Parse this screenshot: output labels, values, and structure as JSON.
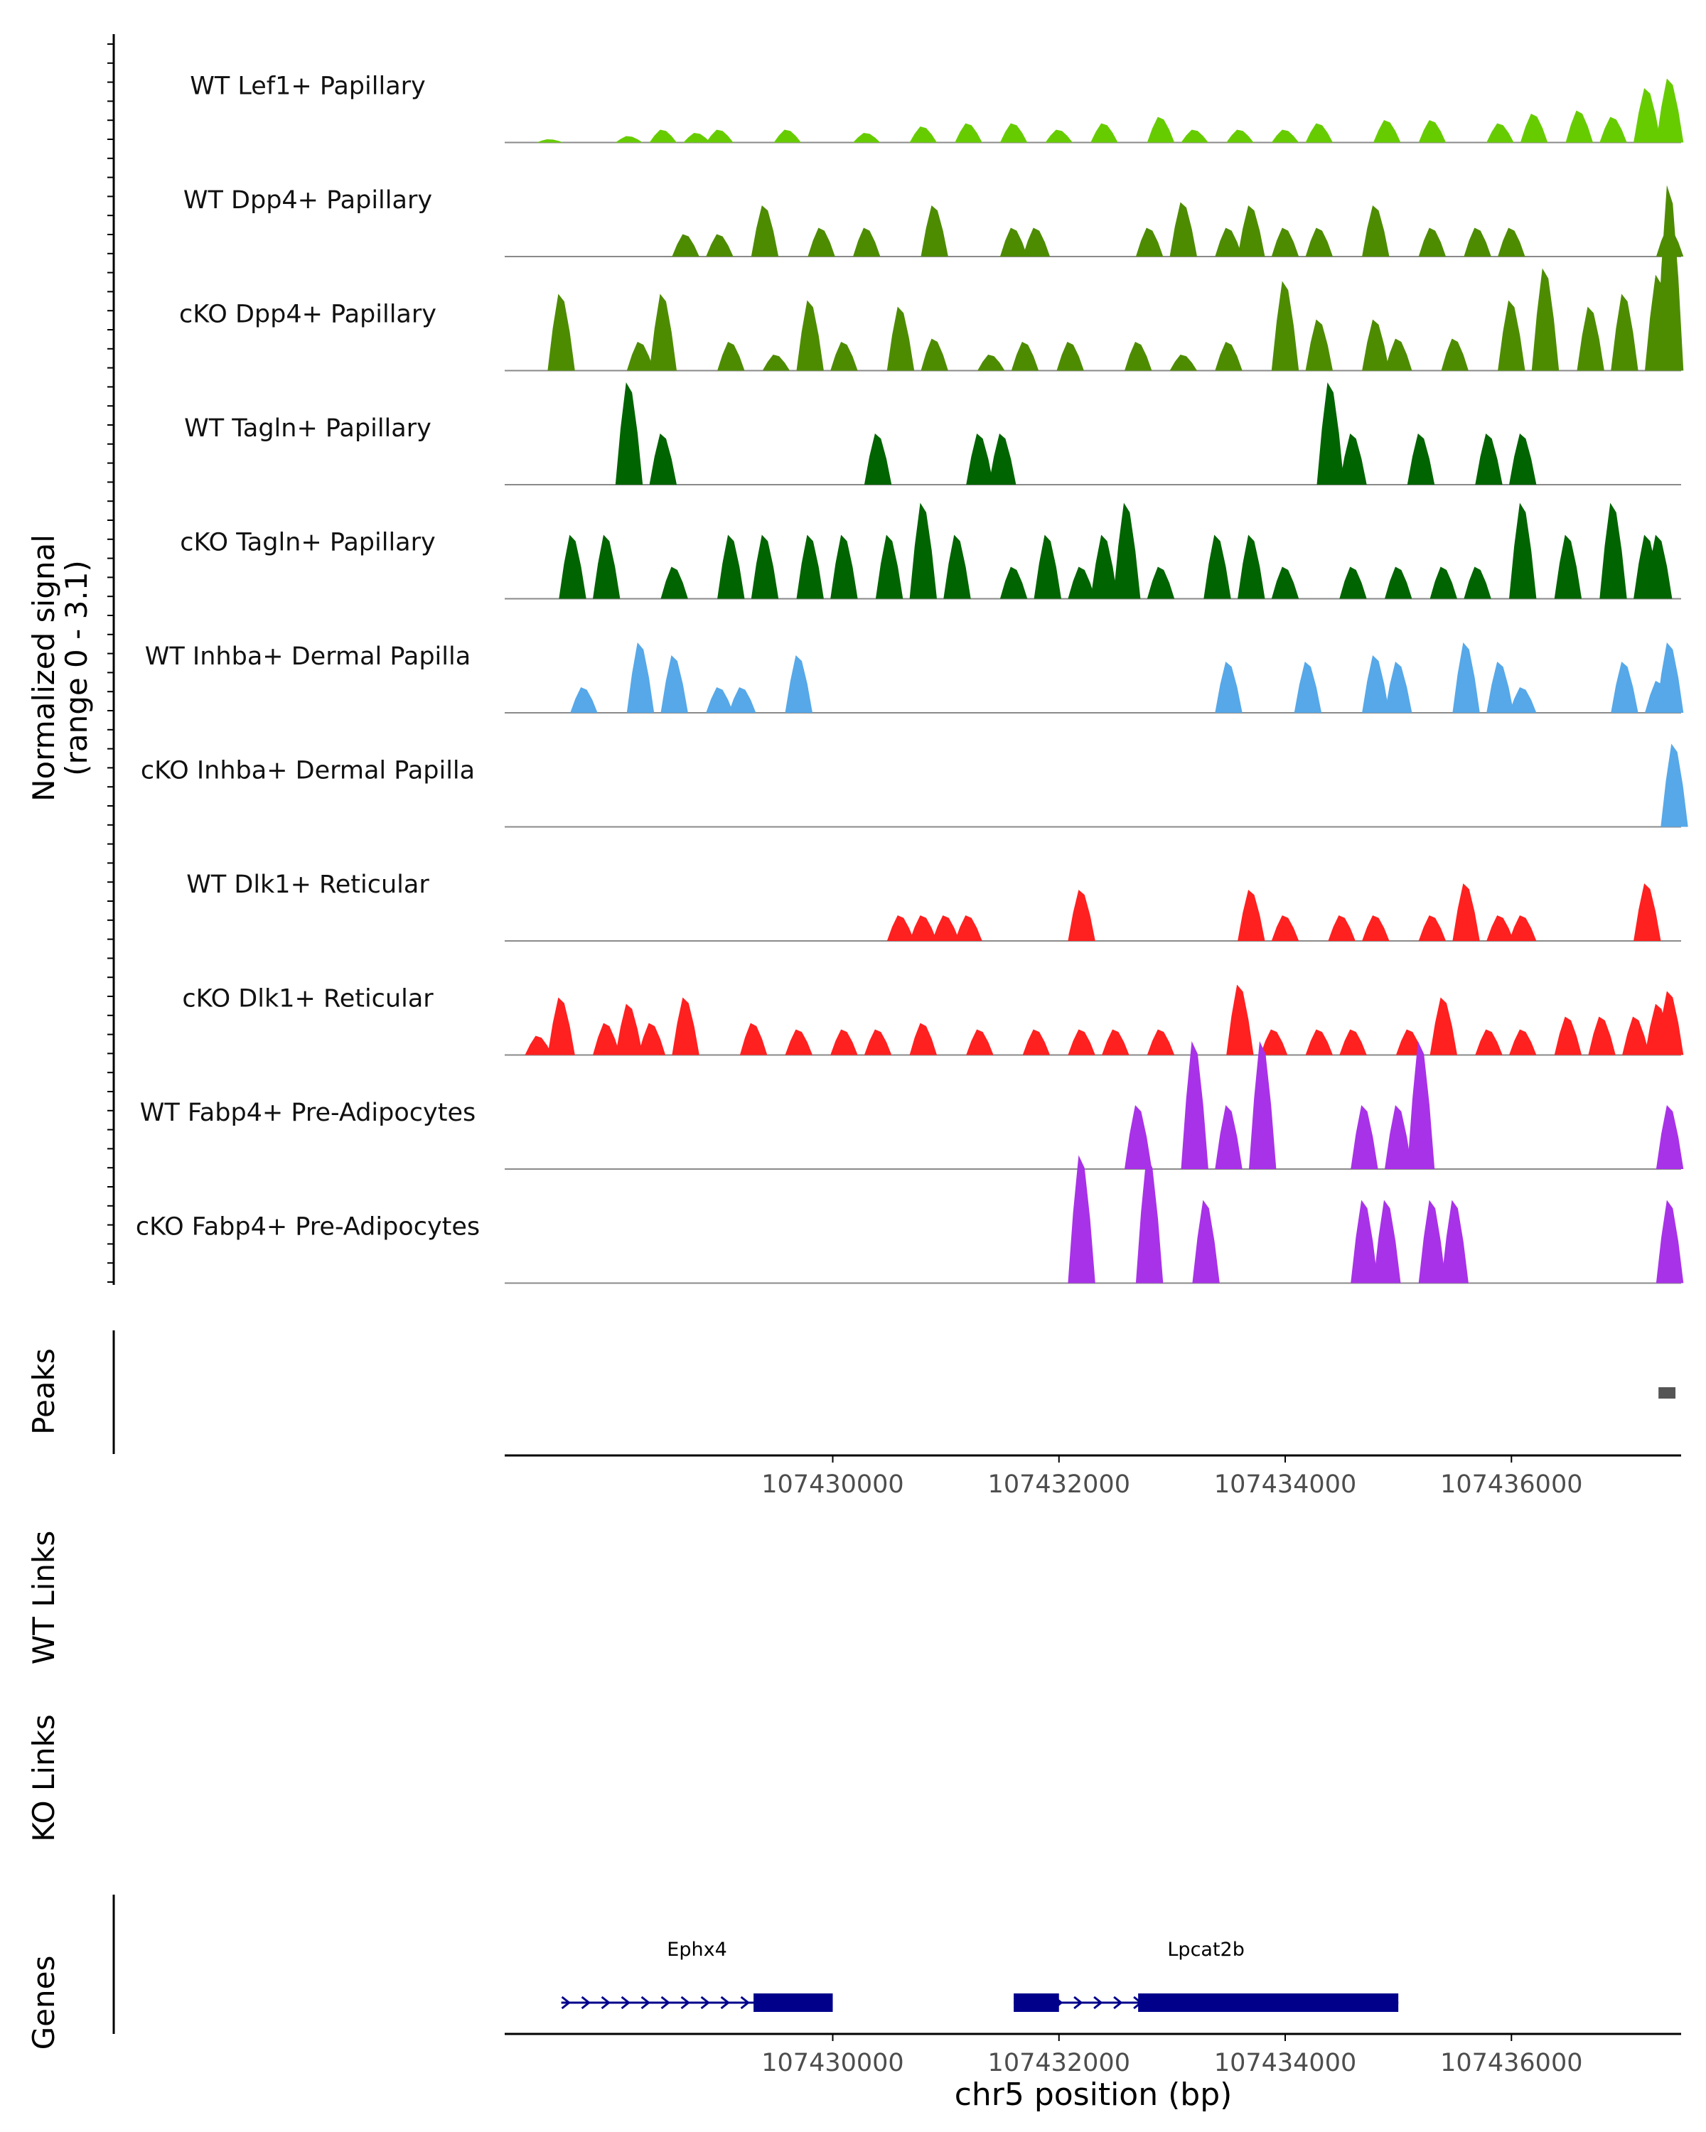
{
  "chart_data": {
    "type": "area",
    "title": "",
    "chromosome": "chr5",
    "xlabel": "chr5 position (bp)",
    "xlim": [
      107427100,
      107437500
    ],
    "xticks": [
      107430000,
      107432000,
      107434000,
      107436000
    ],
    "xtick_labels": [
      "107430000",
      "107432000",
      "107434000",
      "107436000"
    ],
    "coverage_ylabel": [
      "Normalized signal",
      "(range 0 - 3.1)"
    ],
    "coverage_ylim": [
      0,
      3.1
    ],
    "coverage_tracks": [
      {
        "name": "WT Lef1+ Papillary",
        "color": "#66cc00",
        "peaks": [
          [
            107427500,
            0.05
          ],
          [
            107428200,
            0.1
          ],
          [
            107428500,
            0.2
          ],
          [
            107428800,
            0.15
          ],
          [
            107429000,
            0.2
          ],
          [
            107429600,
            0.2
          ],
          [
            107430300,
            0.15
          ],
          [
            107430800,
            0.25
          ],
          [
            107431200,
            0.3
          ],
          [
            107431600,
            0.3
          ],
          [
            107432000,
            0.2
          ],
          [
            107432400,
            0.3
          ],
          [
            107432900,
            0.4
          ],
          [
            107433200,
            0.2
          ],
          [
            107433600,
            0.2
          ],
          [
            107434000,
            0.2
          ],
          [
            107434300,
            0.3
          ],
          [
            107434900,
            0.35
          ],
          [
            107435300,
            0.35
          ],
          [
            107435900,
            0.3
          ],
          [
            107436200,
            0.45
          ],
          [
            107436600,
            0.5
          ],
          [
            107436900,
            0.4
          ],
          [
            107437200,
            0.85
          ],
          [
            107437400,
            1.0
          ]
        ]
      },
      {
        "name": "WT Dpp4+ Papillary",
        "color": "#4d8c00",
        "peaks": [
          [
            107428700,
            0.35
          ],
          [
            107429000,
            0.35
          ],
          [
            107429400,
            0.8
          ],
          [
            107429900,
            0.45
          ],
          [
            107430300,
            0.45
          ],
          [
            107430900,
            0.8
          ],
          [
            107431600,
            0.45
          ],
          [
            107431800,
            0.45
          ],
          [
            107432800,
            0.45
          ],
          [
            107433100,
            0.85
          ],
          [
            107433500,
            0.45
          ],
          [
            107433700,
            0.8
          ],
          [
            107434000,
            0.45
          ],
          [
            107434300,
            0.45
          ],
          [
            107434800,
            0.8
          ],
          [
            107435300,
            0.45
          ],
          [
            107435700,
            0.45
          ],
          [
            107436000,
            0.45
          ],
          [
            107437400,
            0.45
          ]
        ]
      },
      {
        "name": "cKO Dpp4+ Papillary",
        "color": "#4d8c00",
        "peaks": [
          [
            107427600,
            1.2
          ],
          [
            107428300,
            0.45
          ],
          [
            107428500,
            1.2
          ],
          [
            107429100,
            0.45
          ],
          [
            107429500,
            0.25
          ],
          [
            107429800,
            1.1
          ],
          [
            107430100,
            0.45
          ],
          [
            107430600,
            1.0
          ],
          [
            107430900,
            0.5
          ],
          [
            107431400,
            0.25
          ],
          [
            107431700,
            0.45
          ],
          [
            107432100,
            0.45
          ],
          [
            107432700,
            0.45
          ],
          [
            107433100,
            0.25
          ],
          [
            107433500,
            0.45
          ],
          [
            107434000,
            1.4
          ],
          [
            107434300,
            0.8
          ],
          [
            107434800,
            0.8
          ],
          [
            107435000,
            0.5
          ],
          [
            107435500,
            0.5
          ],
          [
            107436000,
            1.1
          ],
          [
            107436300,
            1.6
          ],
          [
            107436700,
            1.0
          ],
          [
            107437000,
            1.2
          ],
          [
            107437300,
            1.5
          ],
          [
            107437400,
            2.9
          ]
        ]
      },
      {
        "name": "WT Tagln+ Papillary",
        "color": "#006400",
        "peaks": [
          [
            107428200,
            1.6
          ],
          [
            107428500,
            0.8
          ],
          [
            107430400,
            0.8
          ],
          [
            107431300,
            0.8
          ],
          [
            107431500,
            0.8
          ],
          [
            107434400,
            1.6
          ],
          [
            107434600,
            0.8
          ],
          [
            107435200,
            0.8
          ],
          [
            107435800,
            0.8
          ],
          [
            107436100,
            0.8
          ]
        ]
      },
      {
        "name": "cKO Tagln+ Papillary",
        "color": "#006400",
        "peaks": [
          [
            107427700,
            1.0
          ],
          [
            107428000,
            1.0
          ],
          [
            107428600,
            0.5
          ],
          [
            107429100,
            1.0
          ],
          [
            107429400,
            1.0
          ],
          [
            107429800,
            1.0
          ],
          [
            107430100,
            1.0
          ],
          [
            107430500,
            1.0
          ],
          [
            107430800,
            1.5
          ],
          [
            107431100,
            1.0
          ],
          [
            107431600,
            0.5
          ],
          [
            107431900,
            1.0
          ],
          [
            107432200,
            0.5
          ],
          [
            107432400,
            1.0
          ],
          [
            107432600,
            1.5
          ],
          [
            107432900,
            0.5
          ],
          [
            107433400,
            1.0
          ],
          [
            107433700,
            1.0
          ],
          [
            107434000,
            0.5
          ],
          [
            107434600,
            0.5
          ],
          [
            107435000,
            0.5
          ],
          [
            107435400,
            0.5
          ],
          [
            107435700,
            0.5
          ],
          [
            107436100,
            1.5
          ],
          [
            107436500,
            1.0
          ],
          [
            107436900,
            1.5
          ],
          [
            107437200,
            1.0
          ],
          [
            107437300,
            1.0
          ]
        ]
      },
      {
        "name": "WT Inhba+ Dermal Papilla",
        "color": "#56a8e8",
        "peaks": [
          [
            107427800,
            0.4
          ],
          [
            107428300,
            1.1
          ],
          [
            107428600,
            0.9
          ],
          [
            107429000,
            0.4
          ],
          [
            107429200,
            0.4
          ],
          [
            107429700,
            0.9
          ],
          [
            107433500,
            0.8
          ],
          [
            107434200,
            0.8
          ],
          [
            107434800,
            0.9
          ],
          [
            107435000,
            0.8
          ],
          [
            107435600,
            1.1
          ],
          [
            107435900,
            0.8
          ],
          [
            107436100,
            0.4
          ],
          [
            107437000,
            0.8
          ],
          [
            107437300,
            0.5
          ],
          [
            107437400,
            1.1
          ]
        ]
      },
      {
        "name": "cKO Inhba+ Dermal Papilla",
        "color": "#56a8e8",
        "peaks": [
          [
            107437440,
            1.3
          ]
        ]
      },
      {
        "name": "WT Dlk1+ Reticular",
        "color": "#ff2020",
        "peaks": [
          [
            107430600,
            0.4
          ],
          [
            107430800,
            0.4
          ],
          [
            107431000,
            0.4
          ],
          [
            107431200,
            0.4
          ],
          [
            107432200,
            0.8
          ],
          [
            107433700,
            0.8
          ],
          [
            107434000,
            0.4
          ],
          [
            107434500,
            0.4
          ],
          [
            107434800,
            0.4
          ],
          [
            107435300,
            0.4
          ],
          [
            107435600,
            0.9
          ],
          [
            107435900,
            0.4
          ],
          [
            107436100,
            0.4
          ],
          [
            107437200,
            0.9
          ]
        ]
      },
      {
        "name": "cKO Dlk1+ Reticular",
        "color": "#ff2020",
        "peaks": [
          [
            107427400,
            0.3
          ],
          [
            107427600,
            0.9
          ],
          [
            107428000,
            0.5
          ],
          [
            107428200,
            0.8
          ],
          [
            107428400,
            0.5
          ],
          [
            107428700,
            0.9
          ],
          [
            107429300,
            0.5
          ],
          [
            107429700,
            0.4
          ],
          [
            107430100,
            0.4
          ],
          [
            107430400,
            0.4
          ],
          [
            107430800,
            0.5
          ],
          [
            107431300,
            0.4
          ],
          [
            107431800,
            0.4
          ],
          [
            107432200,
            0.4
          ],
          [
            107432500,
            0.4
          ],
          [
            107432900,
            0.4
          ],
          [
            107433600,
            1.1
          ],
          [
            107433900,
            0.4
          ],
          [
            107434300,
            0.4
          ],
          [
            107434600,
            0.4
          ],
          [
            107435100,
            0.4
          ],
          [
            107435400,
            0.9
          ],
          [
            107435800,
            0.4
          ],
          [
            107436100,
            0.4
          ],
          [
            107436500,
            0.6
          ],
          [
            107436800,
            0.6
          ],
          [
            107437100,
            0.6
          ],
          [
            107437300,
            0.8
          ],
          [
            107437400,
            1.0
          ]
        ]
      },
      {
        "name": "WT Fabp4+ Pre-Adipocytes",
        "color": "#a832e8",
        "peaks": [
          [
            107432700,
            1.0
          ],
          [
            107433200,
            2.0
          ],
          [
            107433500,
            1.0
          ],
          [
            107433800,
            2.0
          ],
          [
            107434700,
            1.0
          ],
          [
            107435000,
            1.0
          ],
          [
            107435200,
            2.0
          ],
          [
            107437400,
            1.0
          ]
        ]
      },
      {
        "name": "cKO Fabp4+ Pre-Adipocytes",
        "color": "#a832e8",
        "peaks": [
          [
            107432200,
            2.0
          ],
          [
            107432800,
            2.0
          ],
          [
            107433300,
            1.3
          ],
          [
            107434700,
            1.3
          ],
          [
            107434900,
            1.3
          ],
          [
            107435300,
            1.3
          ],
          [
            107435500,
            1.3
          ],
          [
            107437400,
            1.3
          ]
        ]
      }
    ],
    "peaks_track": {
      "label": "Peaks",
      "color": "#555555",
      "regions": [
        [
          107437300,
          107437450
        ]
      ]
    },
    "links_tracks": [
      {
        "label": "WT Links",
        "links": []
      },
      {
        "label": "KO Links",
        "links": []
      }
    ],
    "genes_track": {
      "label": "Genes",
      "color": "#00008b",
      "genes": [
        {
          "name": "Ephx4",
          "start": 107427600,
          "end": 107430000,
          "exons": [
            [
              107429300,
              107430000
            ]
          ],
          "strand": "+"
        },
        {
          "name": "Lpcat2b",
          "start": 107431600,
          "end": 107435000,
          "exons": [
            [
              107431600,
              107432000
            ],
            [
              107432700,
              107435000
            ]
          ],
          "strand": "+"
        }
      ]
    }
  }
}
